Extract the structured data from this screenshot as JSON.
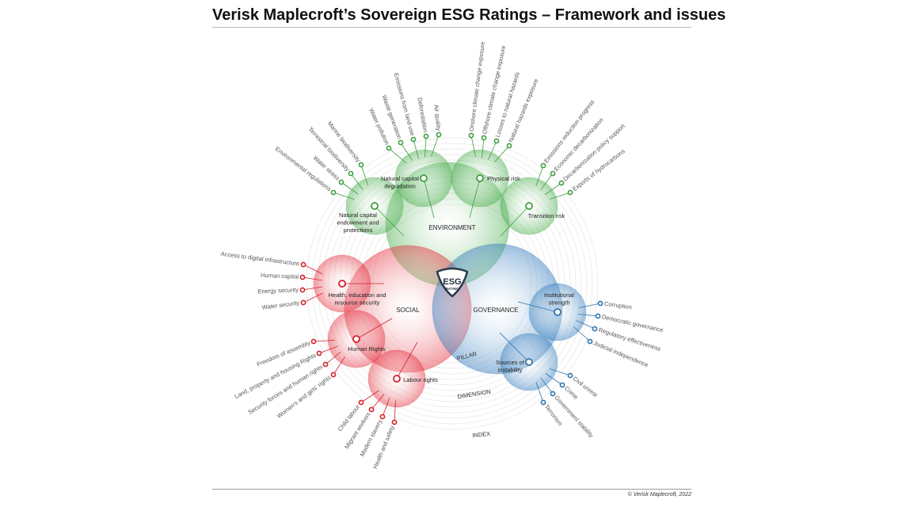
{
  "title": "Verisk Maplecroft’s Sovereign ESG Ratings – Framework and issues",
  "copyright": "© Verisk Maplecroft, 2022",
  "center": {
    "line1": "ESG",
    "line2": "RATING"
  },
  "levels": {
    "pillar": "PILLAR",
    "dimension": "DIMENSION",
    "index": "INDEX"
  },
  "colors": {
    "environment": "#3f9e3f",
    "social": "#d4202c",
    "governance": "#2f74ad",
    "badge": "#2b3a4a"
  },
  "pillars": [
    {
      "name": "ENVIRONMENT",
      "color": "environment",
      "dimensions": [
        {
          "label": [
            "Natural capital",
            "endowment and",
            "protections"
          ],
          "issues": [
            "Environmental regulations",
            "Water stress",
            "Terrestrial biodiversity",
            "Marine biodiversity"
          ]
        },
        {
          "label": [
            "Natural capital",
            "degradation"
          ],
          "issues": [
            "Water pollution",
            "Waste generation",
            "Emissions from land use",
            "Deforestation",
            "Air quality"
          ]
        },
        {
          "label": [
            "Physical risk"
          ],
          "issues": [
            "Onshore climate change exposure",
            "Offshore climate change exposure",
            "Losses to natural hazards",
            "Natural hazards exposure"
          ]
        },
        {
          "label": [
            "Transition risk"
          ],
          "issues": [
            "Emissions reduction progress",
            "Economic decarbonization",
            "Decarbonization policy support",
            "Exports of hydrocarbons"
          ]
        }
      ]
    },
    {
      "name": "SOCIAL",
      "color": "social",
      "dimensions": [
        {
          "label": [
            "Health, education and",
            "resource security"
          ],
          "issues": [
            "Access to digital infrastructure",
            "Human capital",
            "Energy security",
            "Water security"
          ]
        },
        {
          "label": [
            "Human Rights"
          ],
          "issues": [
            "Freedom of assembly",
            "Land, property and housing Rights",
            "Security forces and human rights",
            "Women's and girls' rights"
          ]
        },
        {
          "label": [
            "Labour rights"
          ],
          "issues": [
            "Child labour",
            "Migrant workers",
            "Modern slavery",
            "Health and safety"
          ]
        }
      ]
    },
    {
      "name": "GOVERNANCE",
      "color": "governance",
      "dimensions": [
        {
          "label": [
            "Institutional",
            "strength"
          ],
          "issues": [
            "Corruption",
            "Democratic governance",
            "Regulatory effectiveness",
            "Judicial independence"
          ]
        },
        {
          "label": [
            "Sources of",
            "instability"
          ],
          "issues": [
            "Civil unrest",
            "Crime",
            "Government stability",
            "Terrorism"
          ]
        }
      ]
    }
  ]
}
